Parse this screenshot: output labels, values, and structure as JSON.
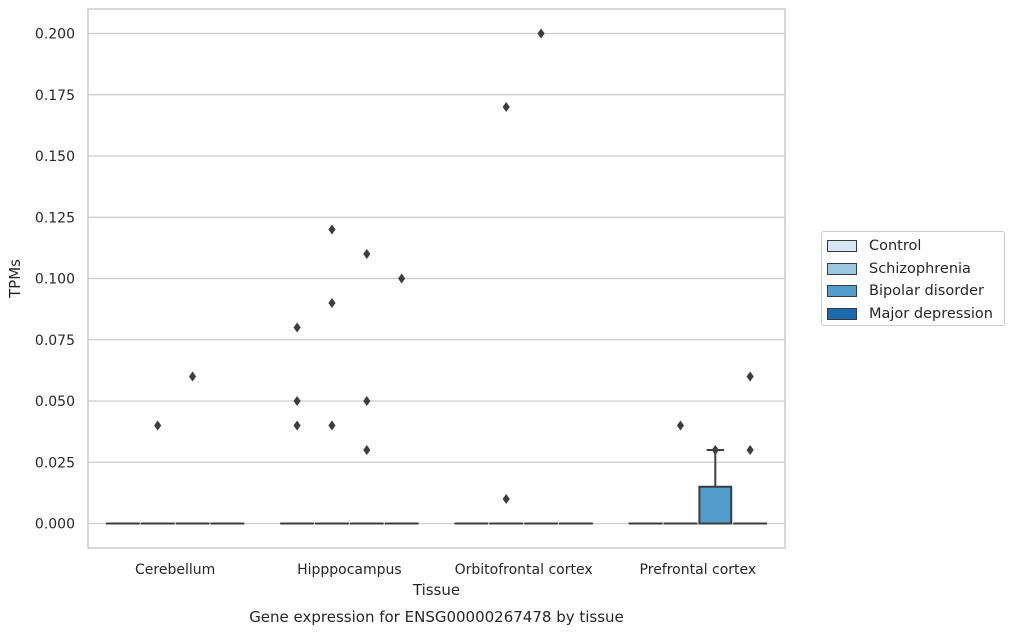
{
  "chart_data": {
    "type": "box",
    "title": "Gene expression for ENSG00000267478 by tissue",
    "xlabel": "Tissue",
    "ylabel": "TPMs",
    "ylim": [
      -0.01,
      0.21
    ],
    "yticks": [
      0.0,
      0.025,
      0.05,
      0.075,
      0.1,
      0.125,
      0.15,
      0.175,
      0.2
    ],
    "ytick_labels": [
      "0.000",
      "0.025",
      "0.050",
      "0.075",
      "0.100",
      "0.125",
      "0.150",
      "0.175",
      "0.200"
    ],
    "grid": "horizontal",
    "legend_position": "right",
    "categories": [
      "Cerebellum",
      "Hipppocampus",
      "Orbitofrontal cortex",
      "Prefrontal cortex"
    ],
    "series": [
      {
        "name": "Control",
        "color": "#d6e6f4",
        "boxes": [
          {
            "q1": 0,
            "median": 0,
            "q3": 0,
            "whisker_low": 0,
            "whisker_high": 0,
            "outliers": []
          },
          {
            "q1": 0,
            "median": 0,
            "q3": 0,
            "whisker_low": 0,
            "whisker_high": 0,
            "outliers": [
              0.08,
              0.05,
              0.04
            ]
          },
          {
            "q1": 0,
            "median": 0,
            "q3": 0,
            "whisker_low": 0,
            "whisker_high": 0,
            "outliers": []
          },
          {
            "q1": 0,
            "median": 0,
            "q3": 0,
            "whisker_low": 0,
            "whisker_high": 0,
            "outliers": []
          }
        ]
      },
      {
        "name": "Schizophrenia",
        "color": "#9ac8e0",
        "boxes": [
          {
            "q1": 0,
            "median": 0,
            "q3": 0,
            "whisker_low": 0,
            "whisker_high": 0,
            "outliers": [
              0.04
            ]
          },
          {
            "q1": 0,
            "median": 0,
            "q3": 0,
            "whisker_low": 0,
            "whisker_high": 0,
            "outliers": [
              0.12,
              0.09,
              0.04
            ]
          },
          {
            "q1": 0,
            "median": 0,
            "q3": 0,
            "whisker_low": 0,
            "whisker_high": 0,
            "outliers": [
              0.01,
              0.17
            ]
          },
          {
            "q1": 0,
            "median": 0,
            "q3": 0,
            "whisker_low": 0,
            "whisker_high": 0,
            "outliers": [
              0.04
            ]
          }
        ]
      },
      {
        "name": "Bipolar disorder",
        "color": "#529dcc",
        "boxes": [
          {
            "q1": 0,
            "median": 0,
            "q3": 0,
            "whisker_low": 0,
            "whisker_high": 0,
            "outliers": [
              0.06
            ]
          },
          {
            "q1": 0,
            "median": 0,
            "q3": 0,
            "whisker_low": 0,
            "whisker_high": 0,
            "outliers": [
              0.11,
              0.05,
              0.03
            ]
          },
          {
            "q1": 0,
            "median": 0,
            "q3": 0,
            "whisker_low": 0,
            "whisker_high": 0,
            "outliers": [
              0.2
            ]
          },
          {
            "q1": 0,
            "median": 0,
            "q3": 0.015,
            "whisker_low": 0,
            "whisker_high": 0.03,
            "outliers": [
              0.03
            ]
          }
        ]
      },
      {
        "name": "Major depression",
        "color": "#1c6aaf",
        "boxes": [
          {
            "q1": 0,
            "median": 0,
            "q3": 0,
            "whisker_low": 0,
            "whisker_high": 0,
            "outliers": []
          },
          {
            "q1": 0,
            "median": 0,
            "q3": 0,
            "whisker_low": 0,
            "whisker_high": 0,
            "outliers": [
              0.1
            ]
          },
          {
            "q1": 0,
            "median": 0,
            "q3": 0,
            "whisker_low": 0,
            "whisker_high": 0,
            "outliers": []
          },
          {
            "q1": 0,
            "median": 0,
            "q3": 0,
            "whisker_low": 0,
            "whisker_high": 0,
            "outliers": [
              0.06,
              0.03
            ]
          }
        ]
      }
    ]
  }
}
